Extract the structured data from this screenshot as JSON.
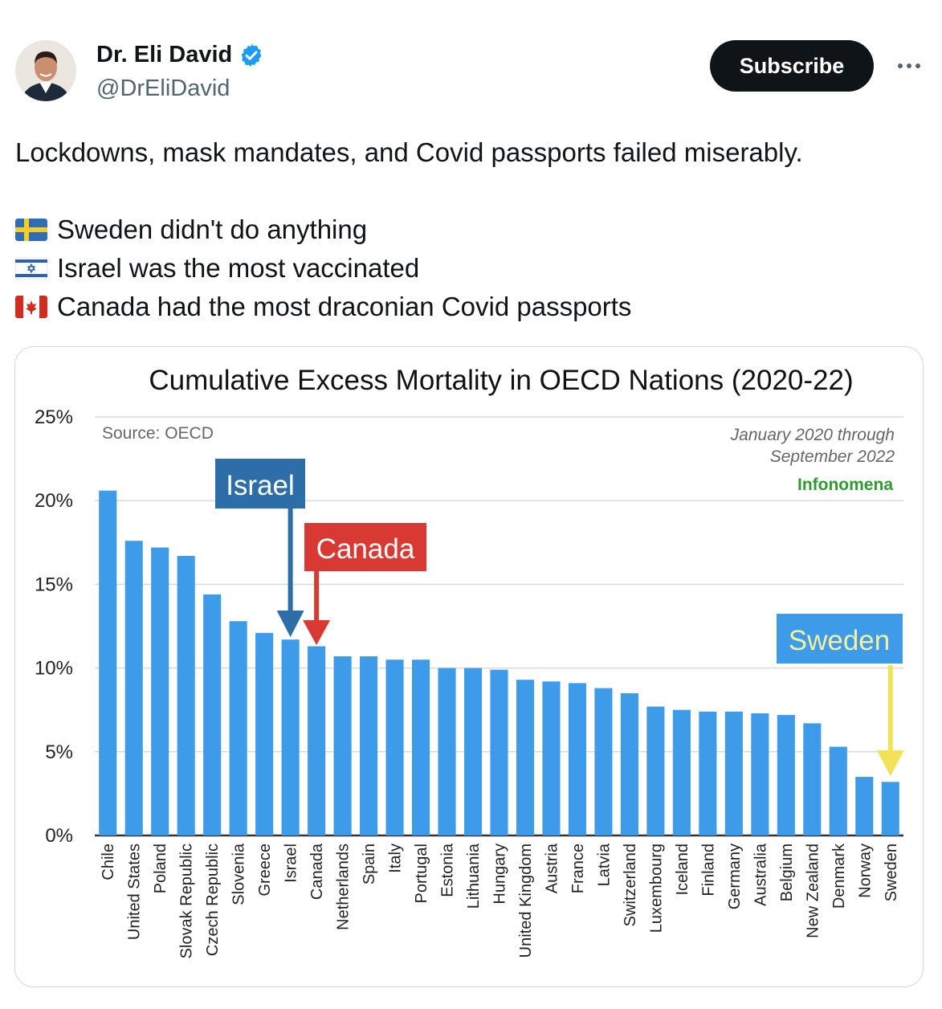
{
  "author": {
    "name": "Dr. Eli David",
    "handle": "@DrEliDavid"
  },
  "header": {
    "subscribe_label": "Subscribe"
  },
  "tweet": {
    "text": "Lockdowns, mask mandates, and Covid passports failed miserably.",
    "lines": [
      {
        "flag": "sweden-flag-icon",
        "text": "Sweden didn't do anything"
      },
      {
        "flag": "israel-flag-icon",
        "text": "Israel was the most vaccinated"
      },
      {
        "flag": "canada-flag-icon",
        "text": "Canada had the most draconian Covid passports"
      }
    ]
  },
  "colors": {
    "bar": "#3d9be9",
    "israel": "#2d6ea9",
    "canada": "#d83a33",
    "sweden_box": "#3d9be9",
    "sweden_arrow": "#f2e25a",
    "infonomena": "#2e9b2e"
  },
  "chart_data": {
    "type": "bar",
    "title": "Cumulative Excess Mortality in OECD Nations (2020-22)",
    "source": "Source: OECD",
    "date_range": [
      "January 2020 through",
      "September 2022"
    ],
    "brand": "Infonomena",
    "ylim": [
      0,
      25
    ],
    "yticks": [
      "0%",
      "5%",
      "10%",
      "15%",
      "20%",
      "25%"
    ],
    "grid": true,
    "categories": [
      "Chile",
      "United States",
      "Poland",
      "Slovak Republic",
      "Czech Republic",
      "Slovenia",
      "Greece",
      "Israel",
      "Canada",
      "Netherlands",
      "Spain",
      "Italy",
      "Portugal",
      "Estonia",
      "Lithuania",
      "Hungary",
      "United Kingdom",
      "Austria",
      "France",
      "Latvia",
      "Switzerland",
      "Luxembourg",
      "Iceland",
      "Finland",
      "Germany",
      "Australia",
      "Belgium",
      "New Zealand",
      "Denmark",
      "Norway",
      "Sweden"
    ],
    "values": [
      20.6,
      17.6,
      17.2,
      16.7,
      14.4,
      12.8,
      12.1,
      11.7,
      11.3,
      10.7,
      10.7,
      10.5,
      10.5,
      10.0,
      10.0,
      9.9,
      9.3,
      9.2,
      9.1,
      8.8,
      8.5,
      7.7,
      7.5,
      7.4,
      7.4,
      7.3,
      7.2,
      6.7,
      5.3,
      3.5,
      3.2
    ],
    "callouts": [
      {
        "label": "Israel",
        "target": "Israel"
      },
      {
        "label": "Canada",
        "target": "Canada"
      },
      {
        "label": "Sweden",
        "target": "Sweden"
      }
    ]
  }
}
